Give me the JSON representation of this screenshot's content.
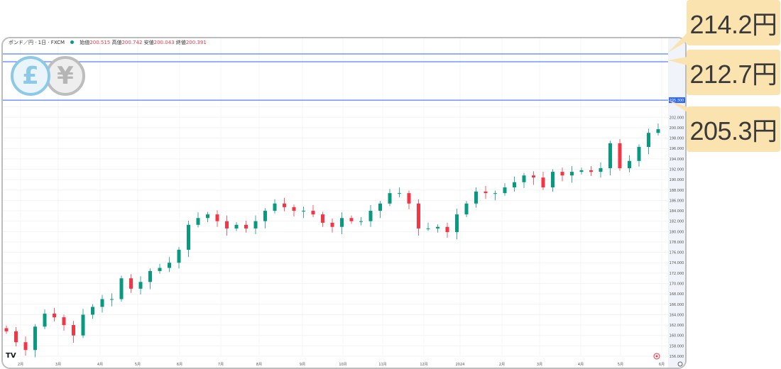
{
  "header": {
    "symbol": "ポンド／円 · 1日 · FXCM",
    "open_label": "始値",
    "open": "200.515",
    "high_label": "高値",
    "high": "200.742",
    "low_label": "安値",
    "low": "200.043",
    "close_label": "終値",
    "close": "200.391"
  },
  "icons": {
    "pound": "£",
    "yen": "¥",
    "logo": "tradingview-logo",
    "marker": "record-icon",
    "settings": "gear-icon"
  },
  "callouts": [
    {
      "label": "214.2円",
      "value": 214.2
    },
    {
      "label": "212.7円",
      "value": 212.7
    },
    {
      "label": "205.3円",
      "value": 205.3
    }
  ],
  "colors": {
    "up": "#089981",
    "down": "#f23645",
    "line": "#2962ff",
    "callout": "#fbe3b0"
  },
  "chart_data": {
    "type": "candlestick",
    "ylim": [
      155,
      216
    ],
    "y_ticks": [
      "156.000",
      "158.000",
      "160.000",
      "162.000",
      "164.000",
      "166.000",
      "168.000",
      "170.000",
      "172.000",
      "174.000",
      "176.000",
      "178.000",
      "180.000",
      "182.000",
      "184.000",
      "186.000",
      "188.000",
      "190.000",
      "192.000",
      "194.000",
      "196.000",
      "198.000",
      "200.000",
      "202.000",
      "204.000"
    ],
    "current_price_label": "205.300",
    "x_ticks": [
      "2月",
      "3月",
      "4月",
      "5月",
      "6月",
      "7月",
      "8月",
      "9月",
      "10月",
      "11月",
      "12月",
      "2024",
      "2月",
      "3月",
      "4月",
      "5月",
      "6月"
    ],
    "horizontal_lines": [
      214.2,
      212.7,
      205.3
    ],
    "closes": [
      160.8,
      158.7,
      157.2,
      161.7,
      164.2,
      163.5,
      162,
      160,
      164,
      165.5,
      167,
      167,
      171,
      169,
      170.3,
      172.4,
      173,
      174,
      176.5,
      181.3,
      182.6,
      183.3,
      182,
      180.6,
      181.3,
      180.6,
      182,
      184,
      185.4,
      184.7,
      184,
      184,
      183.3,
      181.7,
      180.9,
      182.6,
      182,
      182,
      184,
      185.4,
      187.4,
      187.4,
      185.4,
      180.6,
      180.6,
      180.9,
      179.9,
      183.3,
      185.4,
      187.7,
      187.4,
      187.4,
      188.5,
      189.5,
      190.8,
      190.4,
      188.5,
      191.5,
      190.8,
      191.5,
      191.8,
      191.5,
      192.2,
      197,
      192.2,
      193.6,
      196.3,
      199,
      199.7
    ]
  }
}
